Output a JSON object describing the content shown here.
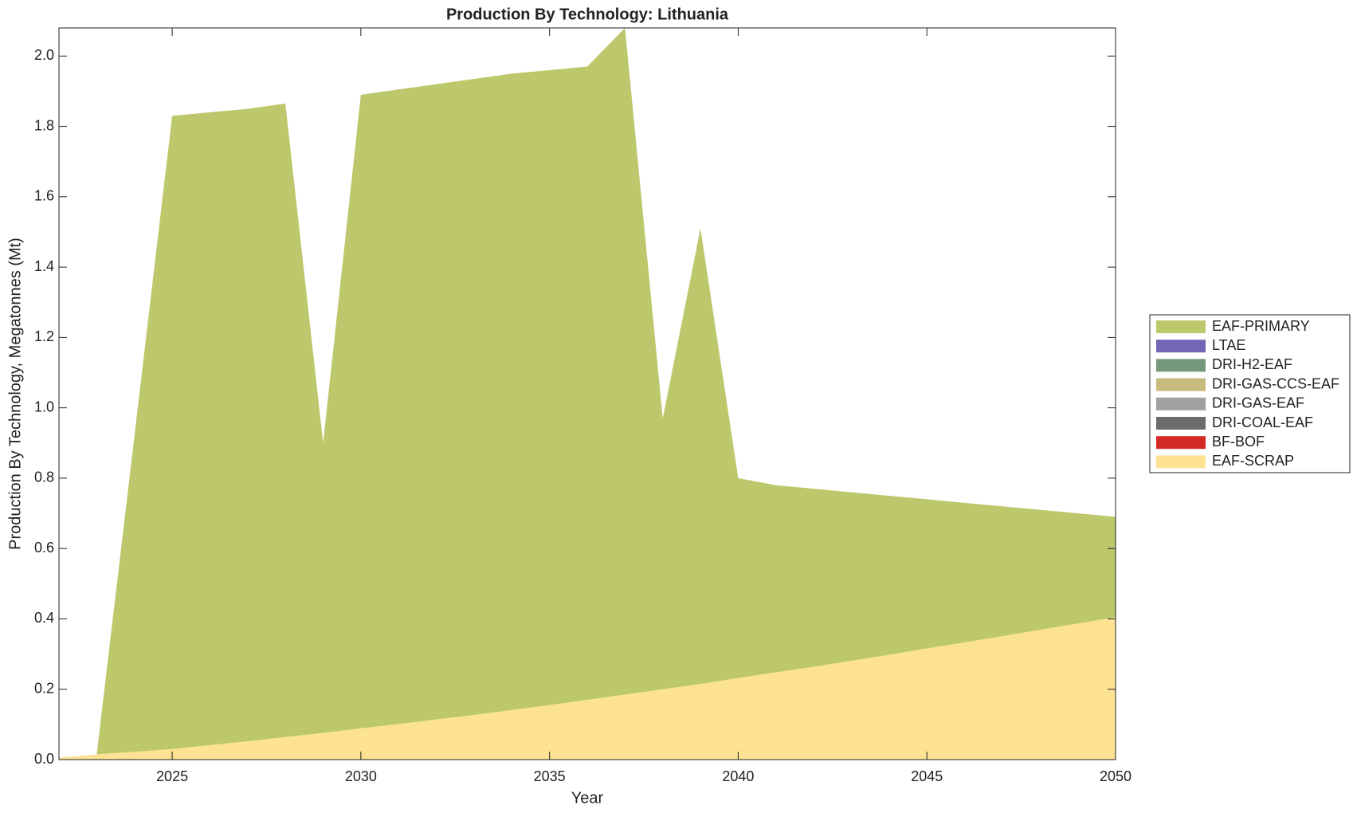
{
  "chart_data": {
    "type": "stacked_area",
    "title": "Production By Technology: Lithuania",
    "x_label": "Year",
    "y_label": "Production By Technology, Megatonnes (Mt)",
    "x": [
      2022,
      2023,
      2024,
      2025,
      2026,
      2027,
      2028,
      2029,
      2030,
      2031,
      2032,
      2033,
      2034,
      2035,
      2036,
      2037,
      2038,
      2039,
      2040,
      2041,
      2042,
      2043,
      2044,
      2045,
      2046,
      2047,
      2048,
      2049,
      2050
    ],
    "series": [
      {
        "name": "EAF-PRIMARY",
        "color": "#bdc86c",
        "values": [
          0,
          0,
          0.898,
          1.8,
          1.799,
          1.798,
          1.801,
          0.824,
          1.801,
          1.804,
          1.806,
          1.808,
          1.809,
          1.805,
          1.8,
          1.895,
          0.77,
          1.295,
          0.568,
          0.532,
          0.506,
          0.479,
          0.452,
          0.424,
          0.397,
          0.369,
          0.341,
          0.313,
          0.285
        ]
      },
      {
        "name": "LTAE",
        "color": "#7566b8",
        "values": [
          0,
          0,
          0,
          0,
          0,
          0,
          0,
          0,
          0,
          0,
          0,
          0,
          0,
          0,
          0,
          0,
          0,
          0,
          0,
          0,
          0,
          0,
          0,
          0,
          0,
          0,
          0,
          0,
          0
        ]
      },
      {
        "name": "DRI-H2-EAF",
        "color": "#75977a",
        "values": [
          0,
          0,
          0,
          0,
          0,
          0,
          0,
          0,
          0,
          0,
          0,
          0,
          0,
          0,
          0,
          0,
          0,
          0,
          0,
          0,
          0,
          0,
          0,
          0,
          0,
          0,
          0,
          0,
          0
        ]
      },
      {
        "name": "DRI-GAS-CCS-EAF",
        "color": "#c6bb7c",
        "values": [
          0,
          0,
          0,
          0,
          0,
          0,
          0,
          0,
          0,
          0,
          0,
          0,
          0,
          0,
          0,
          0,
          0,
          0,
          0,
          0,
          0,
          0,
          0,
          0,
          0,
          0,
          0,
          0,
          0
        ]
      },
      {
        "name": "DRI-GAS-EAF",
        "color": "#a0a0a0",
        "values": [
          0,
          0,
          0,
          0,
          0,
          0,
          0,
          0,
          0,
          0,
          0,
          0,
          0,
          0,
          0,
          0,
          0,
          0,
          0,
          0,
          0,
          0,
          0,
          0,
          0,
          0,
          0,
          0,
          0
        ]
      },
      {
        "name": "DRI-COAL-EAF",
        "color": "#6c6c6c",
        "values": [
          0,
          0,
          0,
          0,
          0,
          0,
          0,
          0,
          0,
          0,
          0,
          0,
          0,
          0,
          0,
          0,
          0,
          0,
          0,
          0,
          0,
          0,
          0,
          0,
          0,
          0,
          0,
          0,
          0
        ]
      },
      {
        "name": "BF-BOF",
        "color": "#d42a26",
        "values": [
          0,
          0,
          0,
          0,
          0,
          0,
          0,
          0,
          0,
          0,
          0,
          0,
          0,
          0,
          0,
          0,
          0,
          0,
          0,
          0,
          0,
          0,
          0,
          0,
          0,
          0,
          0,
          0,
          0
        ]
      },
      {
        "name": "EAF-SCRAP",
        "color": "#fde293",
        "values": [
          0.005,
          0.015,
          0.022,
          0.03,
          0.041,
          0.052,
          0.064,
          0.076,
          0.089,
          0.101,
          0.114,
          0.127,
          0.141,
          0.155,
          0.17,
          0.185,
          0.2,
          0.215,
          0.232,
          0.248,
          0.264,
          0.281,
          0.298,
          0.316,
          0.333,
          0.351,
          0.369,
          0.387,
          0.405
        ]
      }
    ],
    "xlim": [
      2022,
      2050
    ],
    "xticks": [
      2025,
      2030,
      2035,
      2040,
      2045,
      2050
    ],
    "ylim": [
      0,
      2.08
    ],
    "yticks": [
      {
        "value": 0,
        "label": "0.0"
      },
      0.2,
      0.4,
      0.6,
      0.8,
      {
        "value": 1,
        "label": "1.0"
      },
      1.2,
      1.4,
      1.6,
      1.8,
      {
        "value": 2,
        "label": "2.0"
      }
    ],
    "legend": "right"
  }
}
